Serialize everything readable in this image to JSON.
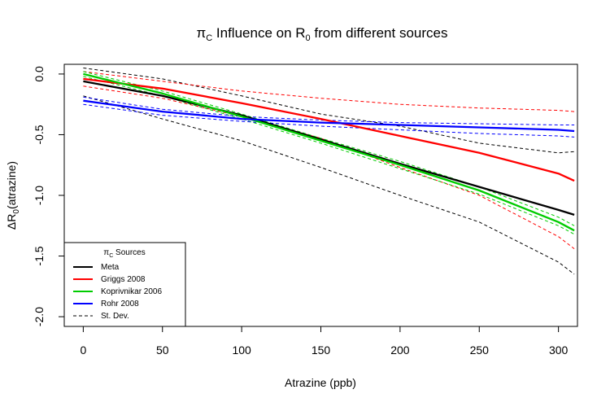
{
  "chart_data": {
    "type": "line",
    "title": "π_C Influence on R_0 from different sources",
    "title_parts": {
      "pi": "π",
      "pi_sub": "C",
      "mid": " Influence on R",
      "r_sub": "0",
      "end": " from different sources"
    },
    "xlabel": "Atrazine (ppb)",
    "ylabel": "ΔR0(atrazine)",
    "ylabel_parts": {
      "pre": "ΔR",
      "sub": "0",
      "post": "(atrazine)"
    },
    "xlim": [
      -12,
      312
    ],
    "ylim": [
      -2.08,
      0.08
    ],
    "x_ticks": [
      0,
      50,
      100,
      150,
      200,
      250,
      300
    ],
    "x_tick_labels": [
      "0",
      "50",
      "100",
      "150",
      "200",
      "250",
      "300"
    ],
    "y_ticks": [
      0,
      -0.5,
      -1,
      -1.5,
      -2
    ],
    "y_tick_labels": [
      "0.0",
      "-0.5",
      "-1.0",
      "-1.5",
      "-2.0"
    ],
    "grid": false,
    "legend": {
      "position": "bottom-left",
      "title_parts": {
        "pi": "π",
        "pi_sub": "C",
        "rest": " Sources"
      },
      "entries": [
        {
          "label": "Meta",
          "color": "#000000",
          "dashed": false
        },
        {
          "label": "Griggs 2008",
          "color": "#ff0000",
          "dashed": false
        },
        {
          "label": "Koprivnikar 2006",
          "color": "#00cc00",
          "dashed": false
        },
        {
          "label": "Rohr 2008",
          "color": "#0000ff",
          "dashed": false
        },
        {
          "label": "St. Dev.",
          "color": "#000000",
          "dashed": true
        }
      ]
    },
    "series": [
      {
        "name": "Meta",
        "color": "#000000",
        "kind": "mean",
        "x": [
          0,
          50,
          100,
          150,
          200,
          250,
          300,
          310
        ],
        "y": [
          -0.06,
          -0.18,
          -0.34,
          -0.54,
          -0.74,
          -0.93,
          -1.12,
          -1.16
        ]
      },
      {
        "name": "Meta",
        "color": "#000000",
        "kind": "sd",
        "x": [
          0,
          50,
          100,
          150,
          200,
          250,
          300,
          310
        ],
        "y": [
          0.05,
          -0.04,
          -0.18,
          -0.33,
          -0.43,
          -0.57,
          -0.65,
          -0.64
        ]
      },
      {
        "name": "Meta",
        "color": "#000000",
        "kind": "sd",
        "x": [
          0,
          50,
          100,
          150,
          200,
          250,
          300,
          310
        ],
        "y": [
          -0.18,
          -0.37,
          -0.55,
          -0.77,
          -1.0,
          -1.22,
          -1.55,
          -1.65
        ]
      },
      {
        "name": "Griggs 2008",
        "color": "#ff0000",
        "kind": "mean",
        "x": [
          0,
          50,
          100,
          150,
          200,
          250,
          300,
          310
        ],
        "y": [
          -0.04,
          -0.12,
          -0.24,
          -0.37,
          -0.51,
          -0.65,
          -0.82,
          -0.88
        ]
      },
      {
        "name": "Griggs 2008",
        "color": "#ff0000",
        "kind": "sd",
        "x": [
          0,
          50,
          100,
          150,
          200,
          250,
          300,
          310
        ],
        "y": [
          0.02,
          -0.06,
          -0.14,
          -0.2,
          -0.25,
          -0.28,
          -0.3,
          -0.31
        ]
      },
      {
        "name": "Griggs 2008",
        "color": "#ff0000",
        "kind": "sd",
        "x": [
          0,
          50,
          100,
          150,
          200,
          250,
          300,
          310
        ],
        "y": [
          -0.1,
          -0.2,
          -0.35,
          -0.53,
          -0.77,
          -1.0,
          -1.34,
          -1.44
        ]
      },
      {
        "name": "Koprivnikar 2006",
        "color": "#00cc00",
        "kind": "mean",
        "x": [
          0,
          50,
          100,
          150,
          200,
          250,
          300,
          310
        ],
        "y": [
          0.0,
          -0.16,
          -0.35,
          -0.55,
          -0.75,
          -0.96,
          -1.22,
          -1.29
        ]
      },
      {
        "name": "Koprivnikar 2006",
        "color": "#00cc00",
        "kind": "sd",
        "x": [
          0,
          50,
          100,
          150,
          200,
          250,
          300,
          310
        ],
        "y": [
          0.02,
          -0.14,
          -0.33,
          -0.53,
          -0.72,
          -0.93,
          -1.18,
          -1.25
        ]
      },
      {
        "name": "Koprivnikar 2006",
        "color": "#00cc00",
        "kind": "sd",
        "x": [
          0,
          50,
          100,
          150,
          200,
          250,
          300,
          310
        ],
        "y": [
          -0.02,
          -0.18,
          -0.37,
          -0.57,
          -0.78,
          -0.99,
          -1.25,
          -1.32
        ]
      },
      {
        "name": "Rohr 2008",
        "color": "#0000ff",
        "kind": "mean",
        "x": [
          0,
          50,
          100,
          150,
          200,
          250,
          300,
          310
        ],
        "y": [
          -0.22,
          -0.31,
          -0.37,
          -0.4,
          -0.42,
          -0.44,
          -0.46,
          -0.47
        ]
      },
      {
        "name": "Rohr 2008",
        "color": "#0000ff",
        "kind": "sd",
        "x": [
          0,
          50,
          100,
          150,
          200,
          250,
          300,
          310
        ],
        "y": [
          -0.19,
          -0.29,
          -0.35,
          -0.38,
          -0.4,
          -0.41,
          -0.42,
          -0.42
        ]
      },
      {
        "name": "Rohr 2008",
        "color": "#0000ff",
        "kind": "sd",
        "x": [
          0,
          50,
          100,
          150,
          200,
          250,
          300,
          310
        ],
        "y": [
          -0.25,
          -0.34,
          -0.39,
          -0.43,
          -0.46,
          -0.49,
          -0.51,
          -0.52
        ]
      }
    ]
  }
}
